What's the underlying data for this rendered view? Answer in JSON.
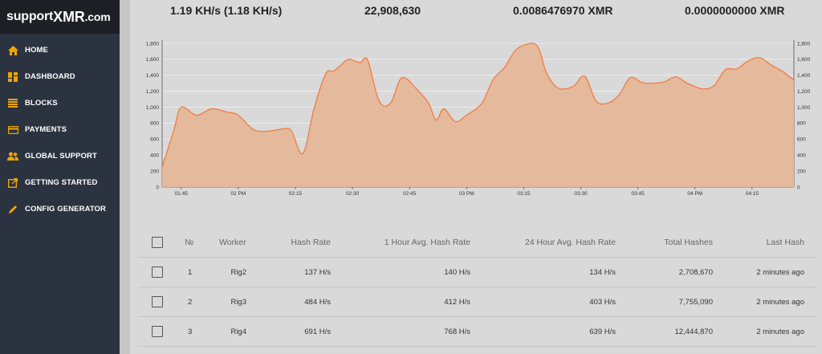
{
  "brand": {
    "prefix": "support",
    "main": "XMR",
    "suffix": ".com"
  },
  "nav": [
    {
      "label": "HOME",
      "icon": "home-icon"
    },
    {
      "label": "DASHBOARD",
      "icon": "dashboard-icon"
    },
    {
      "label": "BLOCKS",
      "icon": "blocks-icon"
    },
    {
      "label": "PAYMENTS",
      "icon": "payments-icon"
    },
    {
      "label": "GLOBAL SUPPORT",
      "icon": "users-icon"
    },
    {
      "label": "GETTING STARTED",
      "icon": "external-link-icon"
    },
    {
      "label": "CONFIG GENERATOR",
      "icon": "pencil-icon"
    }
  ],
  "colors": {
    "accent": "#f0a500",
    "sidebar": "#2c3340",
    "chart_fill": "#e6b595",
    "chart_line": "#ef7d42"
  },
  "stats": {
    "hashrate": "1.19 KH/s (1.18 KH/s)",
    "hashes": "22,908,630",
    "pending": "0.0086476970 XMR",
    "paid": "0.0000000000 XMR"
  },
  "chart_data": {
    "type": "area",
    "x_ticks": [
      "01:45",
      "02 PM",
      "02:15",
      "02:30",
      "02:45",
      "03 PM",
      "03:15",
      "03:30",
      "03:45",
      "04 PM",
      "04:15"
    ],
    "y_ticks": [
      "0",
      "200",
      "400",
      "600",
      "800",
      "1,000",
      "1,200",
      "1,400",
      "1,600",
      "1,800"
    ],
    "ylim": [
      0,
      1800
    ],
    "grid": true,
    "x": [
      "01:40",
      "01:43",
      "01:45",
      "01:49",
      "01:53",
      "01:57",
      "02:00",
      "02:04",
      "02:08",
      "02:12",
      "02:14",
      "02:17",
      "02:20",
      "02:23",
      "02:25",
      "02:27",
      "02:29",
      "02:32",
      "02:34",
      "02:37",
      "02:40",
      "02:43",
      "02:47",
      "02:50",
      "02:52",
      "02:54",
      "02:57",
      "03:00",
      "03:04",
      "03:07",
      "03:10",
      "03:13",
      "03:17",
      "03:19",
      "03:21",
      "03:24",
      "03:28",
      "03:31",
      "03:34",
      "03:37",
      "03:40",
      "03:43",
      "03:46",
      "03:49",
      "03:52",
      "03:55",
      "03:58",
      "04:02",
      "04:05",
      "04:08",
      "04:11",
      "04:14",
      "04:17",
      "04:20",
      "04:23",
      "04:26"
    ],
    "values": [
      250,
      700,
      1000,
      900,
      980,
      940,
      900,
      720,
      700,
      730,
      700,
      420,
      1000,
      1420,
      1450,
      1530,
      1600,
      1560,
      1590,
      1080,
      1050,
      1370,
      1220,
      1050,
      840,
      980,
      820,
      900,
      1050,
      1350,
      1500,
      1720,
      1800,
      1730,
      1430,
      1240,
      1260,
      1390,
      1080,
      1050,
      1150,
      1370,
      1310,
      1300,
      1320,
      1380,
      1300,
      1230,
      1270,
      1470,
      1480,
      1580,
      1620,
      1530,
      1450,
      1340
    ]
  },
  "table": {
    "headers": {
      "no": "№",
      "worker": "Worker",
      "hashrate": "Hash Rate",
      "avg1h": "1 Hour Avg. Hash Rate",
      "avg24h": "24 Hour Avg. Hash Rate",
      "total": "Total Hashes",
      "last": "Last Hash"
    },
    "rows": [
      {
        "no": "1",
        "worker": "Rig2",
        "hashrate": "137 H/s",
        "avg1h": "140 H/s",
        "avg24h": "134 H/s",
        "total": "2,708,670",
        "last": "2 minutes ago"
      },
      {
        "no": "2",
        "worker": "Rig3",
        "hashrate": "484 H/s",
        "avg1h": "412 H/s",
        "avg24h": "403 H/s",
        "total": "7,755,090",
        "last": "2 minutes ago"
      },
      {
        "no": "3",
        "worker": "Rig4",
        "hashrate": "691 H/s",
        "avg1h": "768 H/s",
        "avg24h": "639 H/s",
        "total": "12,444,870",
        "last": "2 minutes ago"
      }
    ]
  }
}
